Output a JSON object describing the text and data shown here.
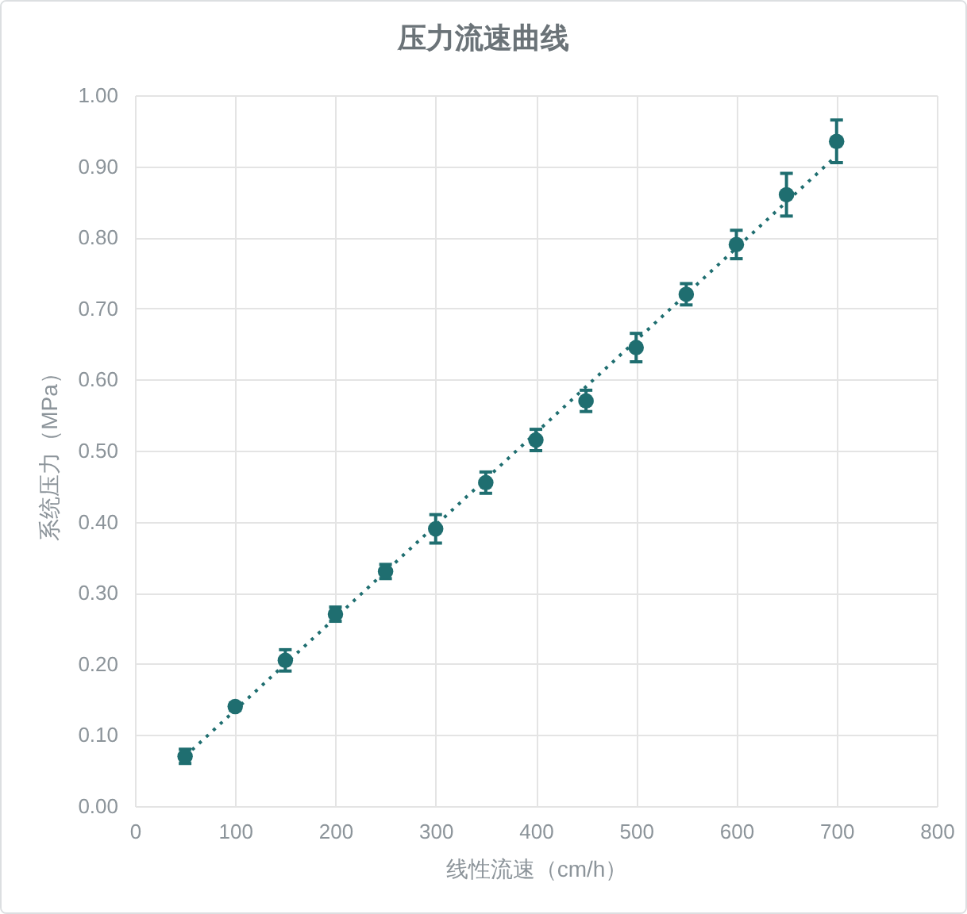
{
  "chart_data": {
    "type": "scatter",
    "title": "压力流速曲线",
    "xlabel": "线性流速（cm/h）",
    "ylabel": "系统压力（MPa）",
    "x": [
      50,
      100,
      150,
      200,
      250,
      300,
      350,
      400,
      450,
      500,
      550,
      600,
      650,
      700
    ],
    "series": [
      {
        "type": "line",
        "color": "#1f6e70",
        "x": [
          50,
          700
        ],
        "values": [
          0.07,
          0.915
        ],
        "line_style": "dotted",
        "marker": "none"
      },
      {
        "color": "#1f6e70",
        "values": [
          0.07,
          0.14,
          0.205,
          0.27,
          0.33,
          0.39,
          0.455,
          0.515,
          0.57,
          0.645,
          0.72,
          0.79,
          0.86,
          0.935
        ],
        "errors": [
          0.01,
          0.005,
          0.015,
          0.01,
          0.01,
          0.02,
          0.015,
          0.015,
          0.015,
          0.02,
          0.015,
          0.02,
          0.03,
          0.03
        ]
      }
    ],
    "xlim": [
      0,
      800
    ],
    "ylim": [
      0,
      1
    ],
    "xticks": [
      0,
      100,
      200,
      300,
      400,
      500,
      600,
      700,
      800
    ],
    "yticks": [
      {
        "value": 0,
        "label": "0.00"
      },
      {
        "value": 0.1,
        "label": "0.10"
      },
      {
        "value": 0.2,
        "label": "0.20"
      },
      {
        "value": 0.3,
        "label": "0.30"
      },
      {
        "value": 0.4,
        "label": "0.40"
      },
      {
        "value": 0.5,
        "label": "0.50"
      },
      {
        "value": 0.6,
        "label": "0.60"
      },
      {
        "value": 0.7,
        "label": "0.70"
      },
      {
        "value": 0.8,
        "label": "0.80"
      },
      {
        "value": 0.9,
        "label": "0.90"
      },
      {
        "value": 1,
        "label": "1.00"
      }
    ],
    "grid": true,
    "marker": "circle"
  }
}
